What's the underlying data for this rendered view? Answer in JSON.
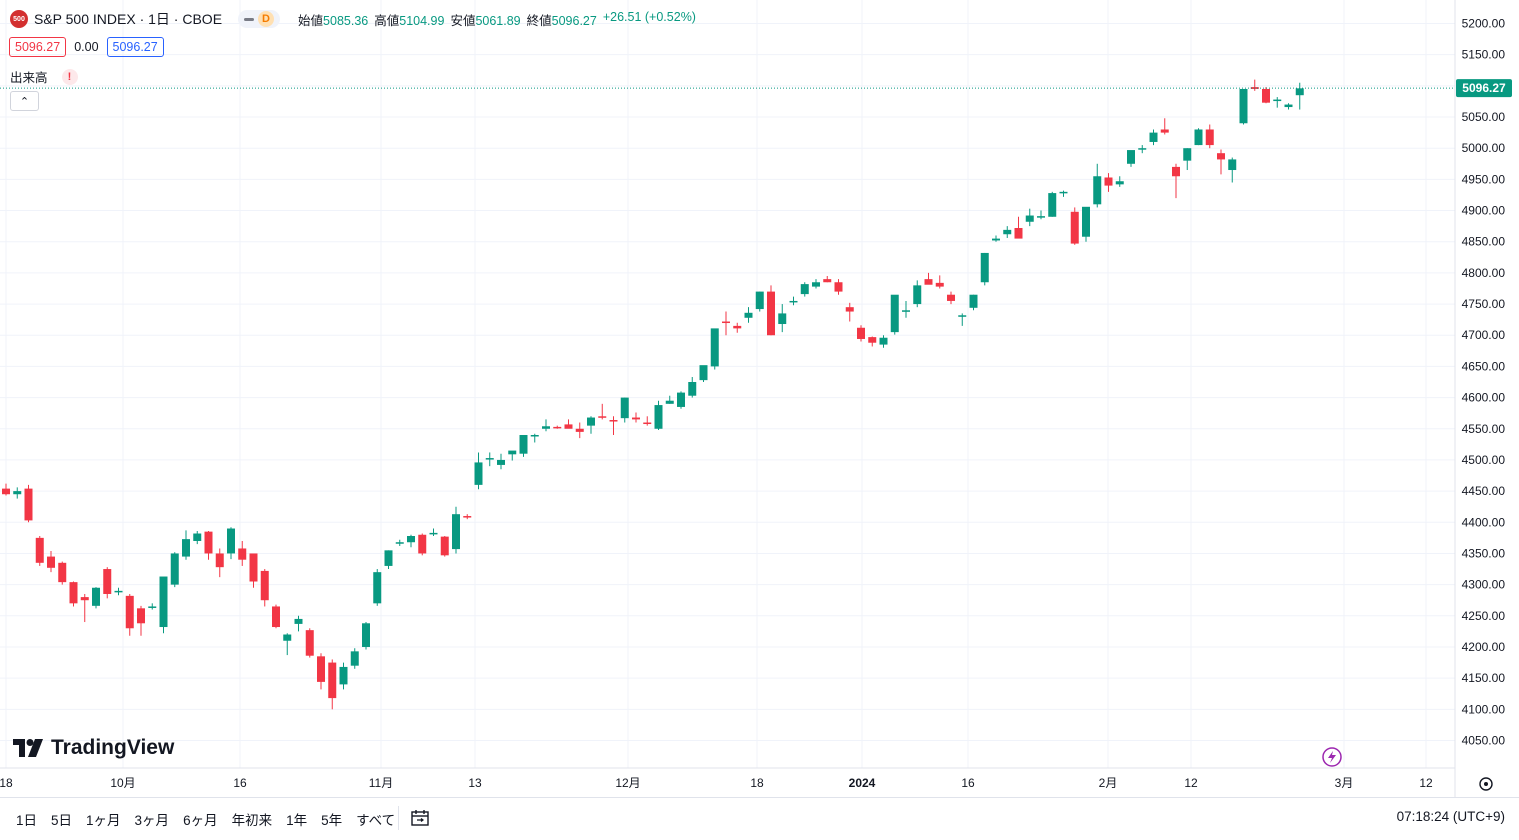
{
  "symbol": {
    "logo_text": "500",
    "title": "S&P 500 INDEX · 1日 · CBOE",
    "badge": "D"
  },
  "ohlc": {
    "open_label": "始値",
    "open": "5085.36",
    "high_label": "高値",
    "high": "5104.99",
    "low_label": "安値",
    "low": "5061.89",
    "close_label": "終値",
    "close": "5096.27",
    "change": "+26.51 (+0.52%)"
  },
  "quotes": {
    "bid": "5096.27",
    "spread": "0.00",
    "ask": "5096.27"
  },
  "indicator": {
    "label": "出来高",
    "warning": "!"
  },
  "collapse_icon": "chevron-up-icon",
  "brand": "TradingView",
  "toolbar": {
    "ranges": [
      "1日",
      "5日",
      "1ヶ月",
      "3ヶ月",
      "6ヶ月",
      "年初来",
      "1年",
      "5年",
      "すべて"
    ],
    "calendar_icon": "calendar-range-icon",
    "clock": "07:18:24 (UTC+9)"
  },
  "colors": {
    "up": "#089981",
    "down": "#f23645",
    "grid": "#f0f3fa",
    "last_price": "#089981"
  },
  "chart_data": {
    "type": "candlestick",
    "y_ticks": [
      "5200.00",
      "5150.00",
      "5100.00",
      "5050.00",
      "5000.00",
      "4950.00",
      "4900.00",
      "4850.00",
      "4800.00",
      "4750.00",
      "4700.00",
      "4650.00",
      "4600.00",
      "4550.00",
      "4500.00",
      "4450.00",
      "4400.00",
      "4350.00",
      "4300.00",
      "4250.00",
      "4200.00",
      "4150.00",
      "4100.00",
      "4050.00"
    ],
    "x_ticks": [
      "18",
      "10月",
      "16",
      "11月",
      "13",
      "12月",
      "18",
      "2024",
      "16",
      "2月",
      "12",
      "3月",
      "12"
    ],
    "last_price": "5096.27",
    "ylim": [
      4030,
      5225
    ],
    "grid": true,
    "candles": [
      [
        4454,
        4462,
        4443,
        4445
      ],
      [
        4445,
        4456,
        4438,
        4450
      ],
      [
        4454,
        4460,
        4400,
        4403
      ],
      [
        4375,
        4378,
        4330,
        4335
      ],
      [
        4345,
        4354,
        4320,
        4327
      ],
      [
        4335,
        4337,
        4300,
        4304
      ],
      [
        4304,
        4305,
        4265,
        4270
      ],
      [
        4280,
        4285,
        4240,
        4275
      ],
      [
        4266,
        4296,
        4262,
        4295
      ],
      [
        4325,
        4328,
        4278,
        4285
      ],
      [
        4288,
        4295,
        4283,
        4290
      ],
      [
        4282,
        4285,
        4218,
        4230
      ],
      [
        4262,
        4266,
        4218,
        4238
      ],
      [
        4265,
        4270,
        4260,
        4265
      ],
      [
        4232,
        4310,
        4222,
        4313
      ],
      [
        4300,
        4352,
        4296,
        4350
      ],
      [
        4345,
        4387,
        4340,
        4373
      ],
      [
        4370,
        4386,
        4365,
        4382
      ],
      [
        4385,
        4386,
        4340,
        4350
      ],
      [
        4350,
        4358,
        4312,
        4328
      ],
      [
        4350,
        4392,
        4341,
        4390
      ],
      [
        4358,
        4370,
        4330,
        4340
      ],
      [
        4350,
        4350,
        4295,
        4305
      ],
      [
        4322,
        4325,
        4265,
        4275
      ],
      [
        4265,
        4268,
        4230,
        4232
      ],
      [
        4210,
        4222,
        4187,
        4220
      ],
      [
        4237,
        4250,
        4225,
        4245
      ],
      [
        4227,
        4230,
        4183,
        4186
      ],
      [
        4185,
        4190,
        4132,
        4144
      ],
      [
        4175,
        4180,
        4100,
        4118
      ],
      [
        4140,
        4175,
        4132,
        4168
      ],
      [
        4170,
        4198,
        4165,
        4193
      ],
      [
        4200,
        4240,
        4196,
        4238
      ],
      [
        4270,
        4325,
        4266,
        4320
      ],
      [
        4330,
        4355,
        4325,
        4355
      ],
      [
        4368,
        4372,
        4362,
        4368
      ],
      [
        4368,
        4380,
        4360,
        4378
      ],
      [
        4380,
        4382,
        4347,
        4350
      ],
      [
        4383,
        4390,
        4378,
        4383
      ],
      [
        4377,
        4378,
        4345,
        4347
      ],
      [
        4357,
        4425,
        4350,
        4413
      ],
      [
        4410,
        4413,
        4405,
        4409
      ],
      [
        4460,
        4512,
        4453,
        4496
      ],
      [
        4502,
        4512,
        4490,
        4503
      ],
      [
        4492,
        4510,
        4485,
        4500
      ],
      [
        4509,
        4513,
        4499,
        4515
      ],
      [
        4510,
        4540,
        4505,
        4540
      ],
      [
        4538,
        4542,
        4528,
        4540
      ],
      [
        4550,
        4565,
        4546,
        4554
      ],
      [
        4553,
        4555,
        4550,
        4552
      ],
      [
        4557,
        4565,
        4552,
        4550
      ],
      [
        4550,
        4560,
        4535,
        4545
      ],
      [
        4555,
        4570,
        4542,
        4568
      ],
      [
        4570,
        4590,
        4565,
        4568
      ],
      [
        4564,
        4570,
        4540,
        4562
      ],
      [
        4567,
        4600,
        4560,
        4600
      ],
      [
        4568,
        4576,
        4560,
        4565
      ],
      [
        4560,
        4570,
        4555,
        4558
      ],
      [
        4550,
        4595,
        4548,
        4588
      ],
      [
        4590,
        4603,
        4590,
        4595
      ],
      [
        4585,
        4610,
        4582,
        4608
      ],
      [
        4603,
        4633,
        4600,
        4625
      ],
      [
        4628,
        4650,
        4625,
        4652
      ],
      [
        4650,
        4710,
        4645,
        4711
      ],
      [
        4722,
        4738,
        4700,
        4720
      ],
      [
        4715,
        4720,
        4704,
        4711
      ],
      [
        4728,
        4745,
        4720,
        4736
      ],
      [
        4742,
        4770,
        4738,
        4770
      ],
      [
        4770,
        4780,
        4700,
        4700
      ],
      [
        4718,
        4750,
        4705,
        4735
      ],
      [
        4753,
        4762,
        4748,
        4755
      ],
      [
        4766,
        4785,
        4762,
        4782
      ],
      [
        4778,
        4790,
        4775,
        4785
      ],
      [
        4790,
        4795,
        4785,
        4785
      ],
      [
        4785,
        4790,
        4765,
        4770
      ],
      [
        4745,
        4752,
        4722,
        4738
      ],
      [
        4712,
        4716,
        4690,
        4694
      ],
      [
        4697,
        4698,
        4682,
        4688
      ],
      [
        4685,
        4700,
        4680,
        4696
      ],
      [
        4705,
        4763,
        4701,
        4765
      ],
      [
        4740,
        4755,
        4728,
        4740
      ],
      [
        4750,
        4788,
        4745,
        4780
      ],
      [
        4790,
        4800,
        4783,
        4781
      ],
      [
        4784,
        4796,
        4775,
        4778
      ],
      [
        4765,
        4770,
        4750,
        4755
      ],
      [
        4730,
        4735,
        4715,
        4732
      ],
      [
        4744,
        4765,
        4740,
        4765
      ],
      [
        4785,
        4832,
        4780,
        4832
      ],
      [
        4852,
        4860,
        4850,
        4855
      ],
      [
        4862,
        4875,
        4856,
        4869
      ],
      [
        4872,
        4890,
        4860,
        4855
      ],
      [
        4882,
        4903,
        4875,
        4892
      ],
      [
        4890,
        4900,
        4886,
        4891
      ],
      [
        4890,
        4930,
        4890,
        4928
      ],
      [
        4928,
        4932,
        4922,
        4930
      ],
      [
        4898,
        4905,
        4845,
        4847
      ],
      [
        4858,
        4905,
        4850,
        4906
      ],
      [
        4910,
        4975,
        4905,
        4955
      ],
      [
        4953,
        4960,
        4930,
        4940
      ],
      [
        4942,
        4955,
        4938,
        4947
      ],
      [
        4975,
        4995,
        4970,
        4997
      ],
      [
        5000,
        5005,
        4992,
        5000
      ],
      [
        5010,
        5030,
        5005,
        5025
      ],
      [
        5030,
        5048,
        5022,
        5025
      ],
      [
        4970,
        4975,
        4920,
        4955
      ],
      [
        4980,
        5000,
        4965,
        5000
      ],
      [
        5005,
        5032,
        5005,
        5030
      ],
      [
        5030,
        5038,
        5000,
        5005
      ],
      [
        4992,
        4998,
        4958,
        4982
      ],
      [
        4965,
        4985,
        4945,
        4982
      ],
      [
        5040,
        5095,
        5038,
        5095
      ],
      [
        5098,
        5110,
        5092,
        5095
      ],
      [
        5095,
        5098,
        5072,
        5073
      ],
      [
        5078,
        5082,
        5065,
        5078
      ],
      [
        5066,
        5072,
        5062,
        5070
      ],
      [
        5085,
        5105,
        5062,
        5096
      ]
    ]
  }
}
